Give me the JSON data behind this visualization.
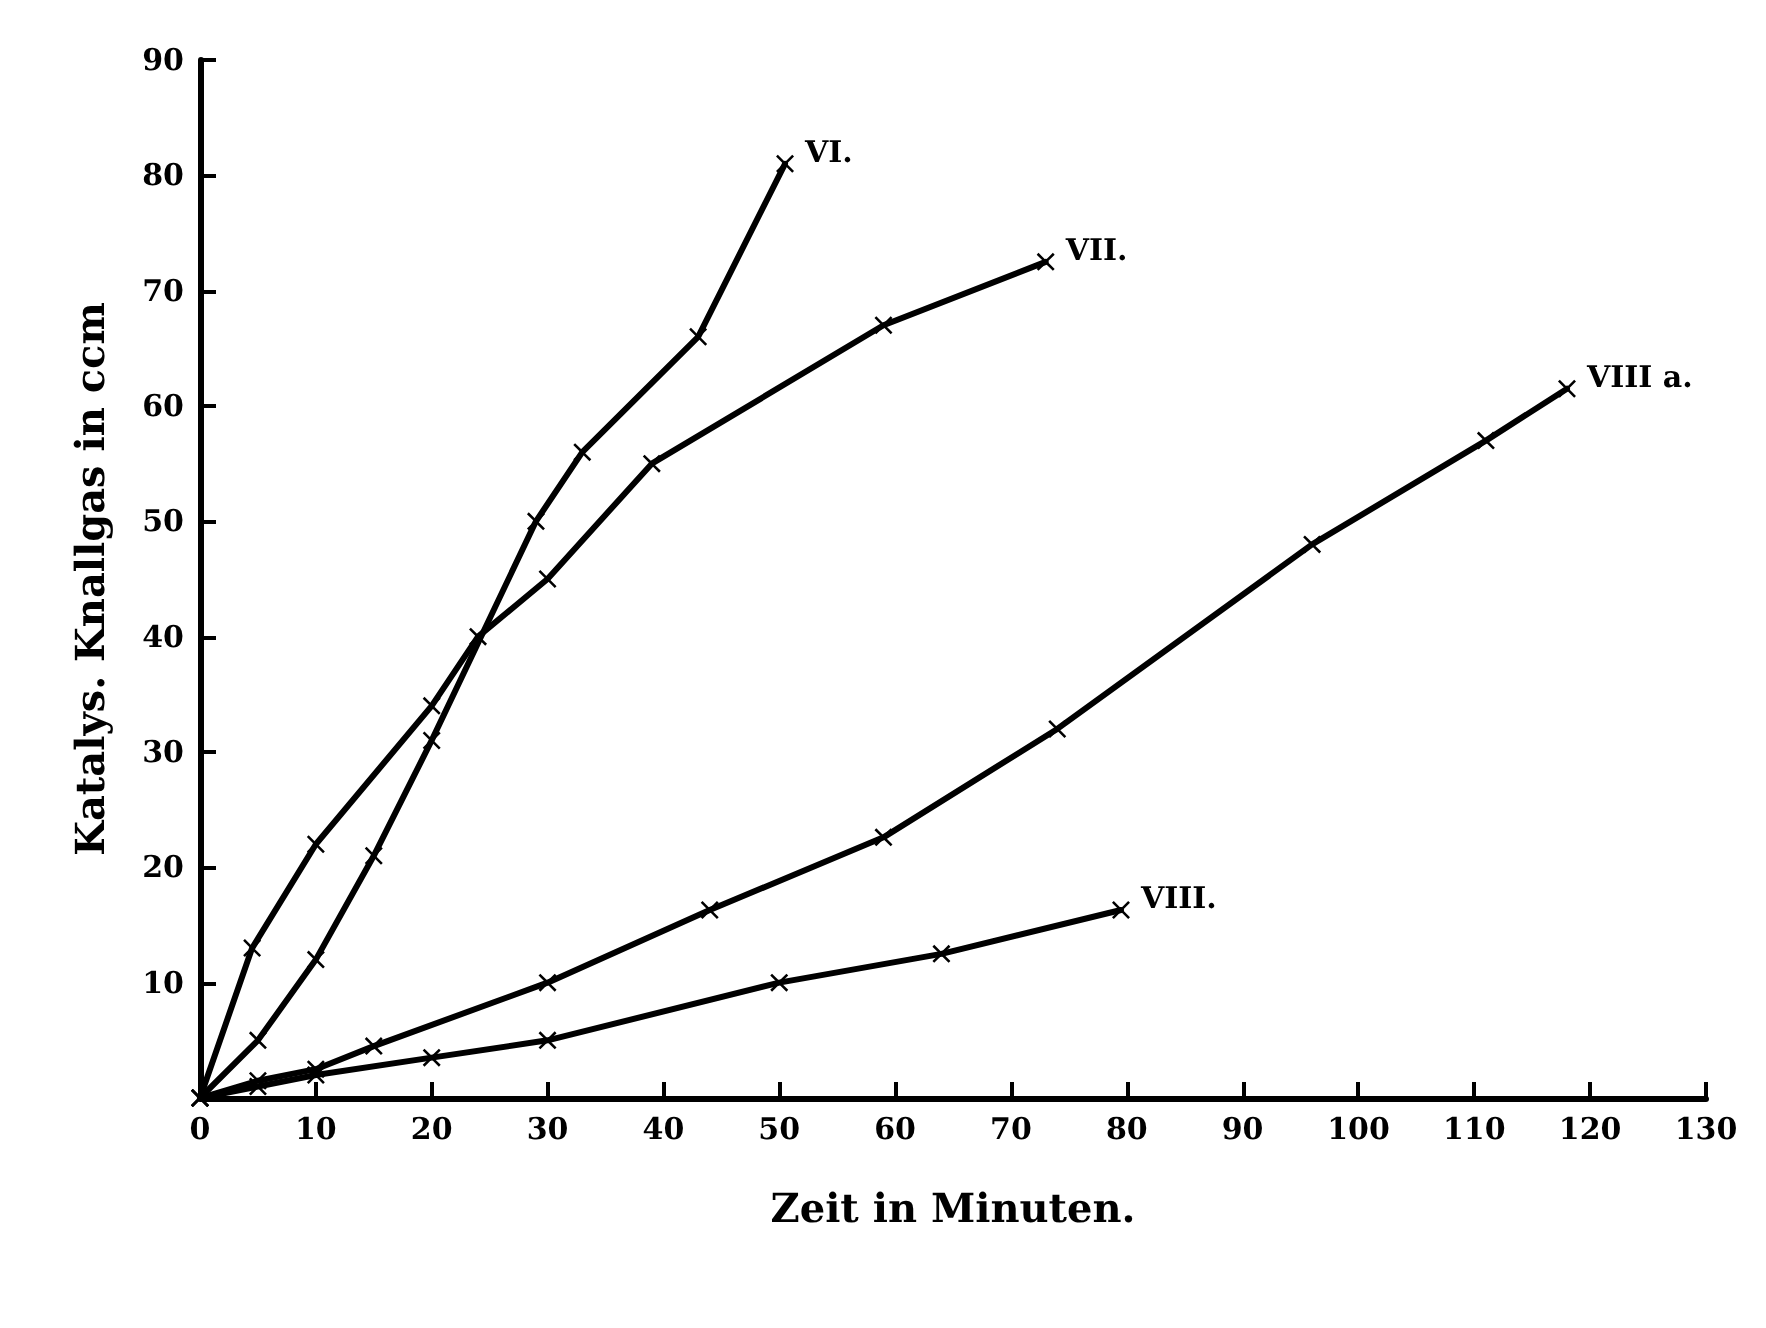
{
  "chart_data": {
    "type": "line",
    "xlabel": "Zeit in Minuten.",
    "ylabel": "Katalys. Knallgas in ccm",
    "xlim": [
      0,
      130
    ],
    "xticks": [
      0,
      10,
      20,
      30,
      40,
      50,
      60,
      70,
      80,
      90,
      100,
      110,
      120,
      130
    ],
    "ylim": [
      0,
      90
    ],
    "yticks": [
      {
        "value": 0,
        "label": null
      },
      10,
      20,
      30,
      40,
      50,
      60,
      70,
      80,
      90
    ],
    "grid": false,
    "legend": false,
    "marker": "cross",
    "line_style": "solid",
    "series": [
      {
        "name": "VI.",
        "color": "#000000",
        "x": [
          0,
          5,
          10,
          15,
          20,
          29,
          33,
          43,
          50.5
        ],
        "values": [
          0,
          5,
          12,
          21,
          31,
          50,
          56,
          66,
          81
        ]
      },
      {
        "name": "VII.",
        "color": "#000000",
        "x": [
          0,
          4.5,
          10,
          20,
          24,
          30,
          39,
          59,
          73
        ],
        "values": [
          0,
          13,
          22,
          34,
          40,
          45,
          55,
          67,
          72.5
        ]
      },
      {
        "name": "VIII a.",
        "color": "#000000",
        "x": [
          0,
          5,
          10,
          15,
          30,
          44,
          59,
          74,
          96,
          111,
          118
        ],
        "values": [
          0,
          1.5,
          2.5,
          4.5,
          10,
          16.3,
          22.6,
          32,
          48,
          57,
          61.5
        ]
      },
      {
        "name": "VIII.",
        "color": "#000000",
        "x": [
          0,
          5,
          10,
          20,
          30,
          50,
          64,
          79.5
        ],
        "values": [
          0,
          1,
          2,
          3.5,
          5,
          10,
          12.5,
          16.3
        ]
      }
    ]
  }
}
